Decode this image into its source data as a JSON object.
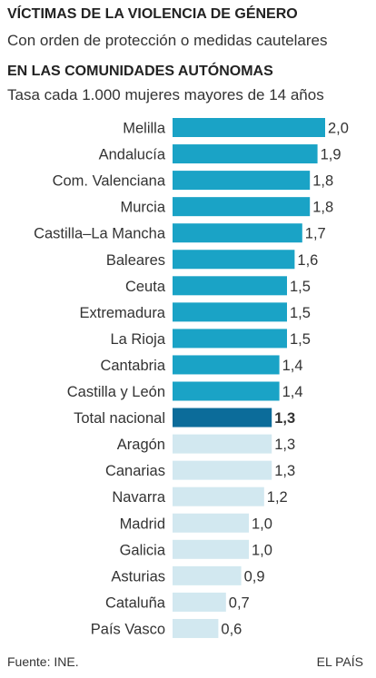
{
  "header": {
    "title": "VÍCTIMAS DE LA VIOLENCIA DE GÉNERO",
    "subtitle": "Con orden de protección o medidas cautelares"
  },
  "chart_data": {
    "type": "bar",
    "orientation": "horizontal",
    "title": "EN LAS COMUNIDADES AUTÓNOMAS",
    "subtitle": "Tasa cada 1.000 mujeres mayores de 14 años",
    "categories": [
      "Melilla",
      "Andalucía",
      "Com. Valenciana",
      "Murcia",
      "Castilla–La Mancha",
      "Baleares",
      "Ceuta",
      "Extremadura",
      "La Rioja",
      "Cantabria",
      "Castilla y León",
      "Total nacional",
      "Aragón",
      "Canarias",
      "Navarra",
      "Madrid",
      "Galicia",
      "Asturias",
      "Cataluña",
      "País Vasco"
    ],
    "values": [
      2.0,
      1.9,
      1.8,
      1.8,
      1.7,
      1.6,
      1.5,
      1.5,
      1.5,
      1.4,
      1.4,
      1.3,
      1.3,
      1.3,
      1.2,
      1.0,
      1.0,
      0.9,
      0.7,
      0.6
    ],
    "value_labels": [
      "2,0",
      "1,9",
      "1,8",
      "1,8",
      "1,7",
      "1,6",
      "1,5",
      "1,5",
      "1,5",
      "1,4",
      "1,4",
      "1,3",
      "1,3",
      "1,3",
      "1,2",
      "1,0",
      "1,0",
      "0,9",
      "0,7",
      "0,6"
    ],
    "highlight": "Total nacional",
    "xlim": [
      0,
      2.0
    ],
    "grid": false,
    "colors": {
      "above_total": "#1aa3c6",
      "total": "#0c6c9a",
      "below_total": "#d2e8f0"
    }
  },
  "footer": {
    "source": "Fuente: INE.",
    "credit": "EL PAÍS"
  }
}
